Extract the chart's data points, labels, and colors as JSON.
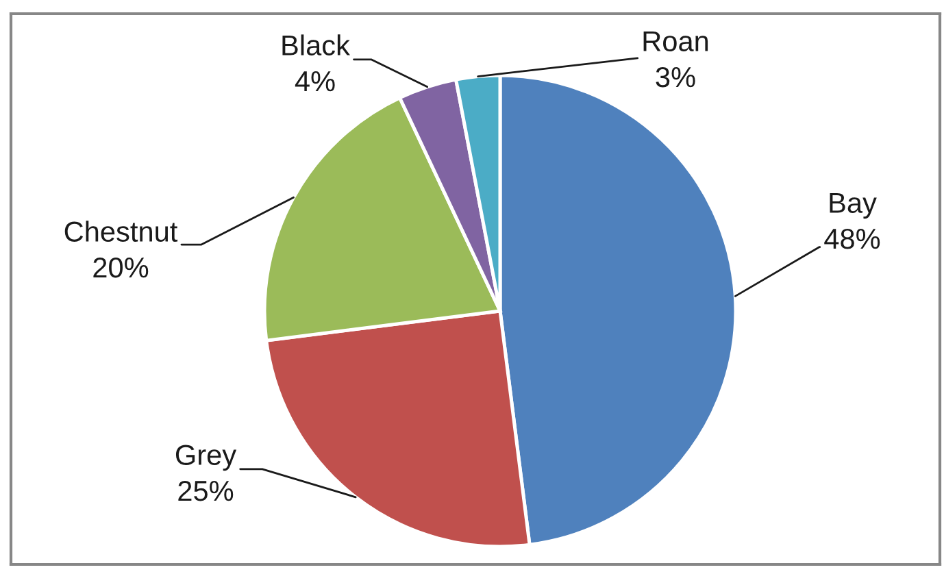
{
  "chart_data": {
    "type": "pie",
    "categories": [
      "Bay",
      "Grey",
      "Chestnut",
      "Black",
      "Roan"
    ],
    "values": [
      48,
      25,
      20,
      4,
      3
    ],
    "colors": [
      "#4f81bd",
      "#c0504d",
      "#9bbb59",
      "#8064a2",
      "#4bacc6"
    ],
    "value_labels": [
      "48%",
      "25%",
      "20%",
      "4%",
      "3%"
    ]
  }
}
